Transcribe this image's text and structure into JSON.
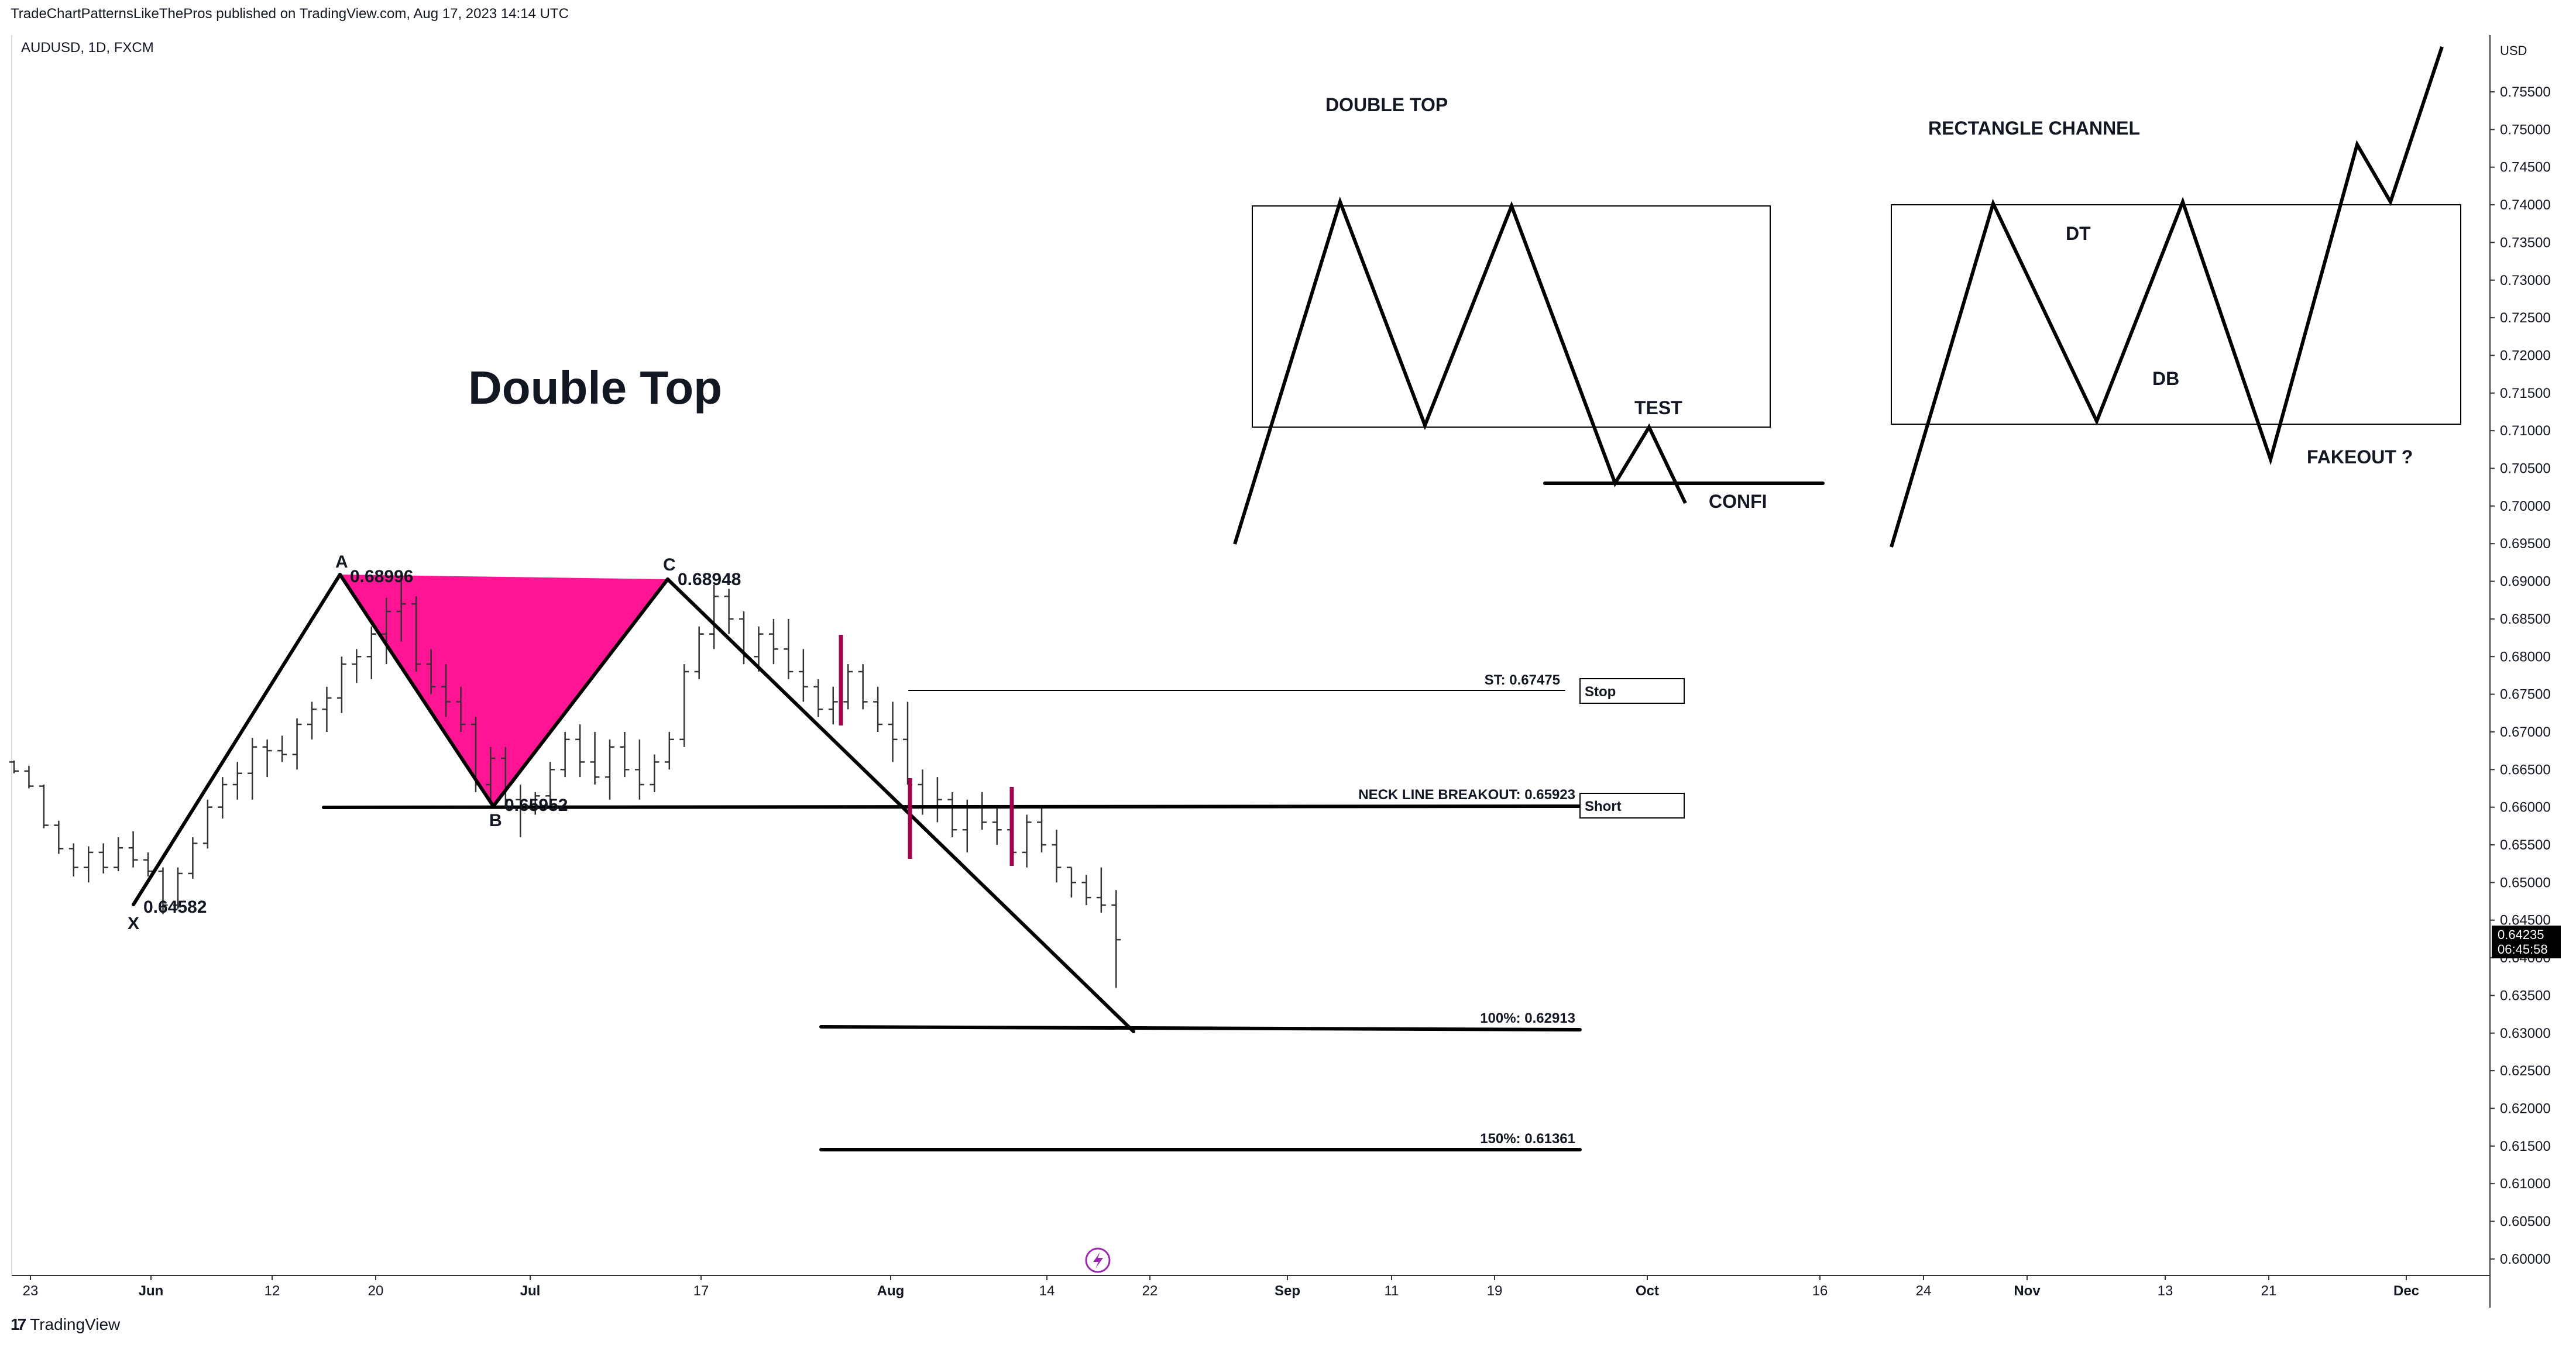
{
  "header": {
    "published_line": "TradeChartPatternsLikeThePros published on TradingView.com, Aug 17, 2023 14:14 UTC",
    "symbol_line": "AUDUSD, 1D, FXCM",
    "currency": "USD"
  },
  "footer": {
    "brand": "TradingView",
    "logo_icon": "tradingview-logo-icon"
  },
  "colors": {
    "triangle": "#ff1493",
    "marker": "#a0004a",
    "text": "#131722",
    "axis": "#333333"
  },
  "chart_data": {
    "type": "ohlc",
    "instrument": "AUDUSD",
    "timeframe": "1D",
    "ylim": [
      0.5975,
      0.7585
    ],
    "y_ticks": [
      "0.75500",
      "0.75000",
      "0.74500",
      "0.74000",
      "0.73500",
      "0.73000",
      "0.72500",
      "0.72000",
      "0.71500",
      "0.71000",
      "0.70500",
      "0.70000",
      "0.69500",
      "0.69000",
      "0.68500",
      "0.68000",
      "0.67500",
      "0.67000",
      "0.66500",
      "0.66000",
      "0.65500",
      "0.65000",
      "0.64500",
      "0.64000",
      "0.63500",
      "0.63000",
      "0.62500",
      "0.62000",
      "0.61500",
      "0.61000",
      "0.60500",
      "0.60000"
    ],
    "x_ticks": [
      "23",
      "Jun",
      "12",
      "20",
      "Jul",
      "17",
      "Aug",
      "14",
      "22",
      "Sep",
      "11",
      "19",
      "Oct",
      "16",
      "24",
      "Nov",
      "13",
      "21",
      "Dec"
    ],
    "last_price": "0.64235",
    "countdown": "06:45:58",
    "title": "Double Top",
    "candles": [
      [
        0.666,
        0.6662,
        0.6645,
        0.6648
      ],
      [
        0.6648,
        0.6655,
        0.6625,
        0.6628
      ],
      [
        0.6628,
        0.663,
        0.6572,
        0.6576
      ],
      [
        0.6576,
        0.6582,
        0.6538,
        0.6545
      ],
      [
        0.6545,
        0.6552,
        0.6508,
        0.652
      ],
      [
        0.652,
        0.6548,
        0.65,
        0.654
      ],
      [
        0.654,
        0.6552,
        0.6512,
        0.652
      ],
      [
        0.652,
        0.656,
        0.6515,
        0.6546
      ],
      [
        0.6546,
        0.6568,
        0.652,
        0.653
      ],
      [
        0.653,
        0.654,
        0.6508,
        0.6515
      ],
      [
        0.6515,
        0.652,
        0.6458,
        0.647
      ],
      [
        0.647,
        0.652,
        0.6465,
        0.6512
      ],
      [
        0.6512,
        0.656,
        0.6505,
        0.6552
      ],
      [
        0.6552,
        0.661,
        0.6545,
        0.66
      ],
      [
        0.66,
        0.664,
        0.6585,
        0.663
      ],
      [
        0.663,
        0.666,
        0.661,
        0.6645
      ],
      [
        0.6645,
        0.6692,
        0.661,
        0.668
      ],
      [
        0.668,
        0.669,
        0.664,
        0.6675
      ],
      [
        0.6675,
        0.6695,
        0.666,
        0.667
      ],
      [
        0.667,
        0.6718,
        0.665,
        0.671
      ],
      [
        0.671,
        0.674,
        0.669,
        0.673
      ],
      [
        0.673,
        0.676,
        0.67,
        0.6745
      ],
      [
        0.6745,
        0.68,
        0.6725,
        0.679
      ],
      [
        0.679,
        0.681,
        0.6765,
        0.68
      ],
      [
        0.68,
        0.684,
        0.677,
        0.683
      ],
      [
        0.683,
        0.6878,
        0.679,
        0.686
      ],
      [
        0.686,
        0.69,
        0.682,
        0.687
      ],
      [
        0.687,
        0.688,
        0.678,
        0.679
      ],
      [
        0.679,
        0.681,
        0.675,
        0.676
      ],
      [
        0.676,
        0.679,
        0.672,
        0.674
      ],
      [
        0.674,
        0.676,
        0.67,
        0.671
      ],
      [
        0.671,
        0.672,
        0.662,
        0.663
      ],
      [
        0.663,
        0.668,
        0.661,
        0.6665
      ],
      [
        0.6665,
        0.668,
        0.66,
        0.661
      ],
      [
        0.661,
        0.663,
        0.656,
        0.66
      ],
      [
        0.66,
        0.662,
        0.659,
        0.6615
      ],
      [
        0.6615,
        0.666,
        0.66,
        0.665
      ],
      [
        0.665,
        0.67,
        0.664,
        0.669
      ],
      [
        0.669,
        0.671,
        0.664,
        0.666
      ],
      [
        0.666,
        0.67,
        0.663,
        0.664
      ],
      [
        0.664,
        0.669,
        0.661,
        0.668
      ],
      [
        0.668,
        0.67,
        0.664,
        0.665
      ],
      [
        0.665,
        0.669,
        0.661,
        0.663
      ],
      [
        0.663,
        0.667,
        0.662,
        0.666
      ],
      [
        0.666,
        0.67,
        0.665,
        0.669
      ],
      [
        0.669,
        0.679,
        0.668,
        0.678
      ],
      [
        0.678,
        0.684,
        0.677,
        0.683
      ],
      [
        0.683,
        0.6895,
        0.681,
        0.688
      ],
      [
        0.688,
        0.689,
        0.683,
        0.685
      ],
      [
        0.685,
        0.686,
        0.679,
        0.68
      ],
      [
        0.68,
        0.684,
        0.678,
        0.683
      ],
      [
        0.683,
        0.685,
        0.679,
        0.681
      ],
      [
        0.681,
        0.685,
        0.677,
        0.678
      ],
      [
        0.678,
        0.681,
        0.674,
        0.676
      ],
      [
        0.676,
        0.677,
        0.672,
        0.673
      ],
      [
        0.673,
        0.676,
        0.671,
        0.674
      ],
      [
        0.674,
        0.679,
        0.673,
        0.678
      ],
      [
        0.678,
        0.679,
        0.673,
        0.674
      ],
      [
        0.674,
        0.676,
        0.67,
        0.671
      ],
      [
        0.671,
        0.674,
        0.666,
        0.669
      ],
      [
        0.669,
        0.674,
        0.663,
        0.663
      ],
      [
        0.663,
        0.665,
        0.659,
        0.66
      ],
      [
        0.66,
        0.664,
        0.658,
        0.661
      ],
      [
        0.661,
        0.662,
        0.656,
        0.657
      ],
      [
        0.657,
        0.661,
        0.654,
        0.66
      ],
      [
        0.66,
        0.662,
        0.657,
        0.658
      ],
      [
        0.658,
        0.66,
        0.655,
        0.657
      ],
      [
        0.657,
        0.659,
        0.653,
        0.654
      ],
      [
        0.654,
        0.659,
        0.652,
        0.658
      ],
      [
        0.658,
        0.66,
        0.654,
        0.655
      ],
      [
        0.655,
        0.657,
        0.65,
        0.652
      ],
      [
        0.652,
        0.652,
        0.648,
        0.65
      ],
      [
        0.65,
        0.651,
        0.647,
        0.648
      ],
      [
        0.648,
        0.652,
        0.646,
        0.647
      ],
      [
        0.647,
        0.649,
        0.636,
        0.6424
      ]
    ],
    "points": [
      {
        "label": "X",
        "value": "0.64582"
      },
      {
        "label": "A",
        "value": "0.68996"
      },
      {
        "label": "B",
        "value": "0.65952"
      },
      {
        "label": "C",
        "value": "0.68948"
      }
    ],
    "levels": [
      {
        "label": "ST: 0.67475",
        "value": 0.67475,
        "tag": "Stop"
      },
      {
        "label": "NECK LINE BREAKOUT: 0.65923",
        "value": 0.65923,
        "tag": "Short"
      },
      {
        "label": "100%: 0.62913",
        "value": 0.62913
      },
      {
        "label": "150%: 0.61361",
        "value": 0.61361
      }
    ],
    "annotations": {
      "double_top_title": "DOUBLE TOP",
      "test": "TEST",
      "confi": "CONFI",
      "rectangle_title": "RECTANGLE CHANNEL",
      "dt": "DT",
      "db": "DB",
      "fakeout": "FAKEOUT ?"
    }
  }
}
